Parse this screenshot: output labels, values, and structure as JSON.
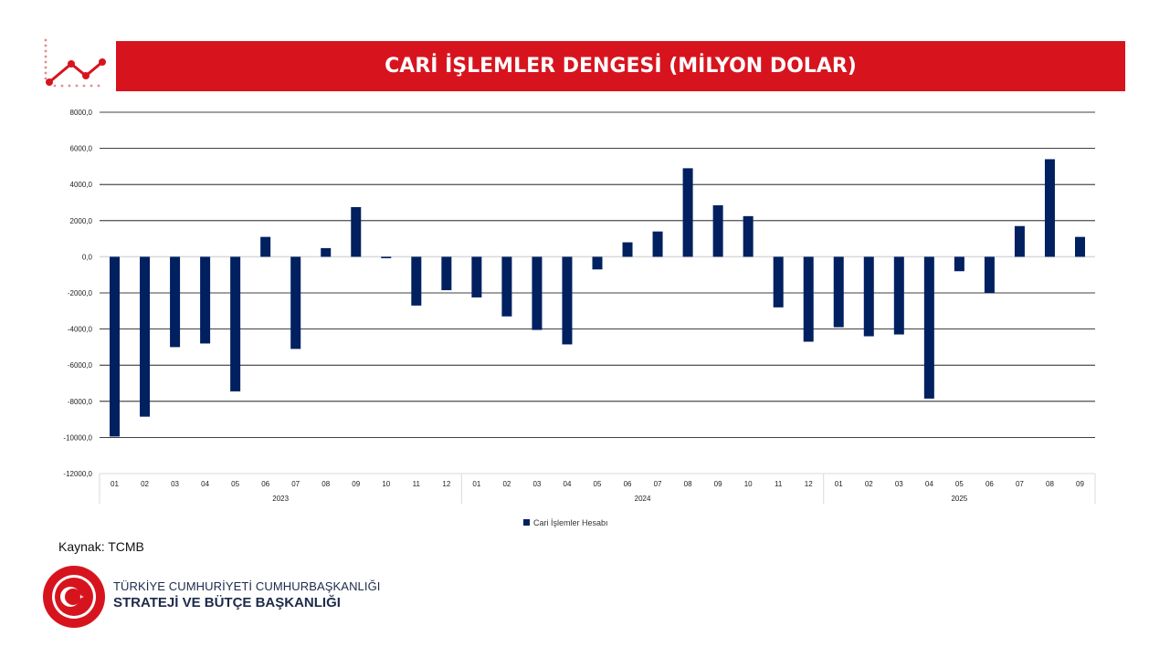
{
  "header": {
    "title": "CARİ İŞLEMLER DENGESİ (MİLYON DOLAR)"
  },
  "source": "Kaynak: TCMB",
  "organization": {
    "line1": "TÜRKİYE CUMHURİYETİ CUMHURBAŞKANLIĞI",
    "line2": "STRATEJİ VE BÜTÇE BAŞKANLIĞI",
    "seal_text": "T.C. CUMHURBAŞKANLIĞI STRATEJİ VE BÜTÇE BAŞKANLIĞI"
  },
  "colors": {
    "accent": "#d7141e",
    "bar": "#002060",
    "grid": "#000000"
  },
  "icons": {
    "logo": "line-chart-icon",
    "seal": "turkish-crescent-star-seal"
  },
  "chart_data": {
    "type": "bar",
    "title": "",
    "xlabel": "",
    "ylabel": "",
    "ylim": [
      -12000,
      8000
    ],
    "yticks": [
      8000,
      6000,
      4000,
      2000,
      0,
      -2000,
      -4000,
      -6000,
      -8000,
      -10000,
      -12000
    ],
    "ytick_labels": [
      "8000,0",
      "6000,0",
      "4000,0",
      "2000,0",
      "0,0",
      "-2000,0",
      "-4000,0",
      "-6000,0",
      "-8000,0",
      "-10000,0",
      "-12000,0"
    ],
    "grid": true,
    "legend_position": "bottom",
    "groups": [
      {
        "label": "2023",
        "months": [
          "01",
          "02",
          "03",
          "04",
          "05",
          "06",
          "07",
          "08",
          "09",
          "10",
          "11",
          "12"
        ]
      },
      {
        "label": "2024",
        "months": [
          "01",
          "02",
          "03",
          "04",
          "05",
          "06",
          "07",
          "08",
          "09",
          "10",
          "11",
          "12"
        ]
      },
      {
        "label": "2025",
        "months": [
          "01",
          "02",
          "03",
          "04",
          "05",
          "06",
          "07",
          "08",
          "09"
        ]
      }
    ],
    "series": [
      {
        "name": "Cari İşlemler Hesabı",
        "values": [
          -9950,
          -8850,
          -5000,
          -4800,
          -7450,
          1100,
          -5100,
          480,
          2750,
          -80,
          -2700,
          -1850,
          -2250,
          -3300,
          -4050,
          -4850,
          -700,
          800,
          1400,
          4900,
          2850,
          2250,
          -2800,
          -4700,
          -3900,
          -4400,
          -4300,
          -7850,
          -800,
          -2000,
          1700,
          5400,
          1100
        ]
      }
    ]
  }
}
